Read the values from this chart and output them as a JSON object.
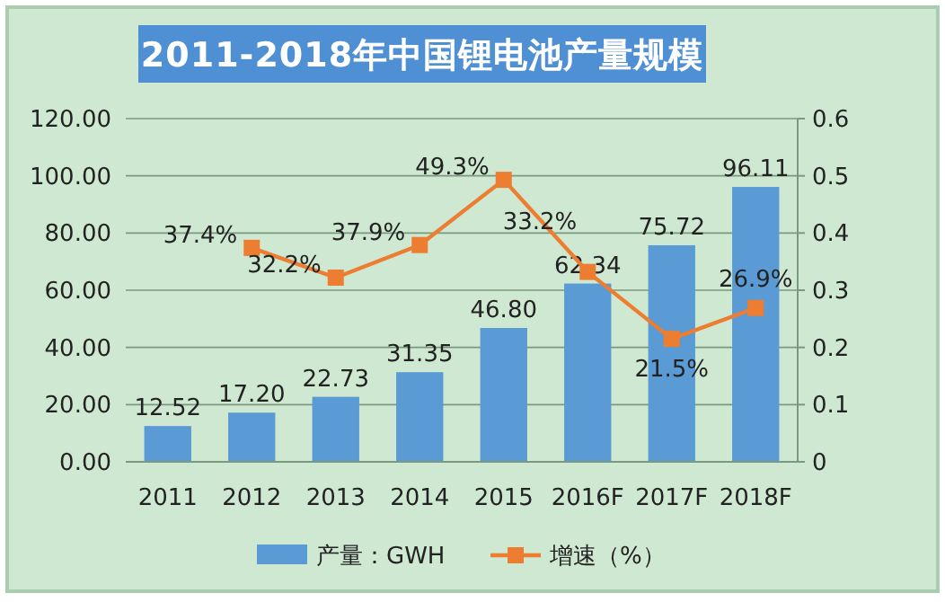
{
  "chart_data": {
    "type": "bar",
    "title": "2011-2018年中国锂电池产量规模",
    "categories": [
      "2011",
      "2012",
      "2013",
      "2014",
      "2015",
      "2016F",
      "2017F",
      "2018F"
    ],
    "series": [
      {
        "name": "产量：GWH",
        "color": "#5b9bd5",
        "values": [
          12.52,
          17.2,
          22.73,
          31.35,
          46.8,
          62.34,
          75.72,
          96.11
        ],
        "value_labels": [
          "12.52",
          "17.20",
          "22.73",
          "31.35",
          "46.80",
          "62.34",
          "75.72",
          "96.11"
        ]
      },
      {
        "name": "增速（%）",
        "type": "line",
        "axis": "y2",
        "color": "#ed7d31",
        "marker": "square",
        "values": [
          null,
          0.374,
          0.322,
          0.379,
          0.493,
          0.332,
          0.215,
          0.269
        ],
        "value_labels": [
          null,
          "37.4%",
          "32.2%",
          "37.9%",
          "49.3%",
          "33.2%",
          "21.5%",
          "26.9%"
        ]
      }
    ],
    "ylim": [
      0,
      120
    ],
    "yticks": [
      "0.00",
      "20.00",
      "40.00",
      "60.00",
      "80.00",
      "100.00",
      "120.00"
    ],
    "y2lim": [
      0,
      0.6
    ],
    "y2ticks": [
      {
        "value": 0,
        "label": "0"
      },
      0.1,
      0.2,
      0.3,
      0.4,
      0.5,
      0.6
    ],
    "grid": "y",
    "legend": "bottom"
  }
}
